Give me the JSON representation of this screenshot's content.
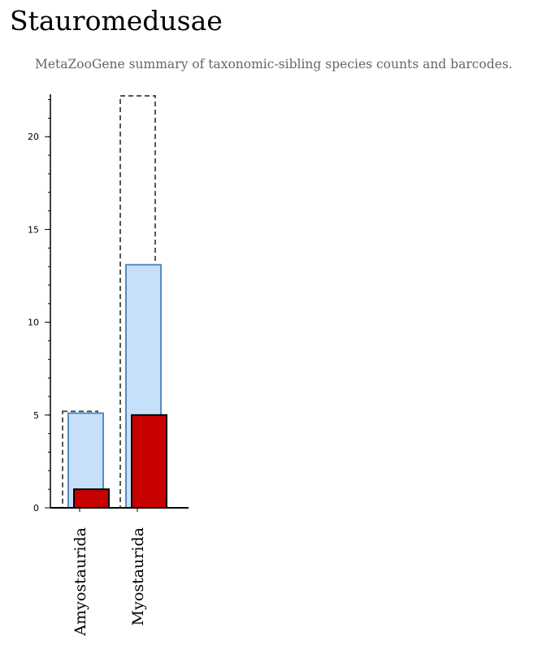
{
  "page": {
    "title": "Stauromedusae",
    "subtitle": "MetaZooGene summary of taxonomic-sibling species counts and barcodes."
  },
  "colors": {
    "total_outline": "#555555",
    "middle_fill": "#c6e0fa",
    "middle_stroke": "#5a8bc0",
    "front_fill": "#c80000",
    "front_stroke": "#000000"
  },
  "chart_data": {
    "type": "bar",
    "categories": [
      "Amyostaurida",
      "Myostaurida"
    ],
    "series": [
      {
        "values": [
          5.2,
          22.2
        ],
        "style": "dashed-outline"
      },
      {
        "values": [
          5.1,
          13.1
        ],
        "style": "light-blue"
      },
      {
        "values": [
          1,
          5
        ],
        "style": "red"
      }
    ],
    "yticks": [
      0,
      5,
      10,
      15,
      20
    ],
    "ylim": [
      0,
      22.2
    ],
    "xlabel": "",
    "ylabel": "",
    "grid": false
  }
}
